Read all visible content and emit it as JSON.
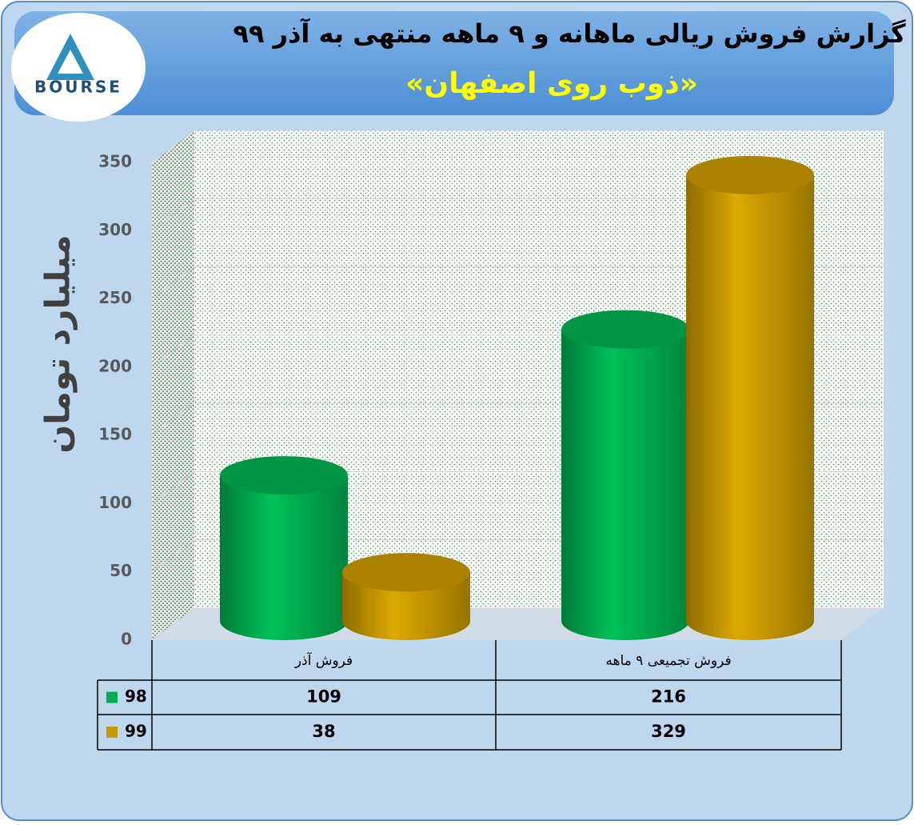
{
  "logo_text": "BOURSE",
  "chart_data": {
    "type": "bar",
    "title": "گزارش فروش ریالی ماهانه و ۹ ماهه منتهی به آذر ۹۹",
    "subtitle": "«ذوب روی اصفهان»",
    "y_label": "میلیارد تومان",
    "categories": [
      "فروش آذر",
      "فروش تجمیعی ۹ ماهه"
    ],
    "series": [
      {
        "name": "98",
        "color": "#00b050",
        "values": [
          109,
          216
        ]
      },
      {
        "name": "99",
        "color": "#c99a00",
        "values": [
          38,
          329
        ]
      }
    ],
    "ylim": [
      0,
      350
    ],
    "yticks": [
      0,
      50,
      100,
      150,
      200,
      250,
      300,
      350
    ],
    "grid": true,
    "data_table": true
  }
}
